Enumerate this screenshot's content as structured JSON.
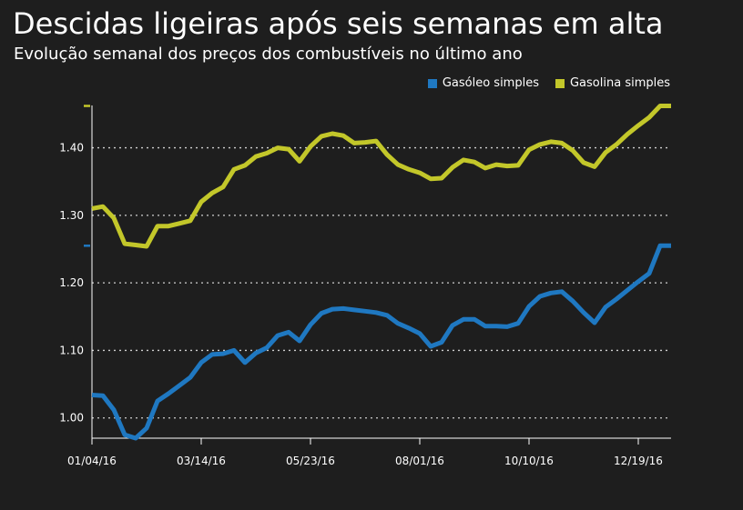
{
  "title": "Descidas ligeiras após seis semanas em alta",
  "subtitle": "Evolução semanal dos preços dos combustíveis no último ano",
  "colors": {
    "background": "#1e1e1e",
    "diesel": "#1f78c1",
    "gasoline": "#c3c72a",
    "grid": "#cfcfcf"
  },
  "chart_data": {
    "type": "line",
    "legend_position": "top-right",
    "grid": true,
    "y_ticks": [
      "1.00",
      "1.10",
      "1.20",
      "1.30",
      "1.40"
    ],
    "y_tick_values": [
      1.0,
      1.1,
      1.2,
      1.3,
      1.4
    ],
    "ylim": [
      0.97,
      1.46
    ],
    "x_ticks": [
      "01/04/16",
      "03/14/16",
      "05/23/16",
      "08/01/16",
      "10/10/16",
      "12/19/16"
    ],
    "x_tick_index": [
      0,
      10,
      20,
      30,
      40,
      50
    ],
    "xlim": [
      0,
      53
    ],
    "series": [
      {
        "name": "Gasóleo simples",
        "color": "#1f78c1",
        "values": [
          1.034,
          1.033,
          1.012,
          0.975,
          0.97,
          0.985,
          1.025,
          1.036,
          1.048,
          1.06,
          1.082,
          1.094,
          1.095,
          1.1,
          1.082,
          1.096,
          1.104,
          1.122,
          1.127,
          1.114,
          1.138,
          1.155,
          1.161,
          1.162,
          1.16,
          1.158,
          1.156,
          1.152,
          1.14,
          1.133,
          1.125,
          1.106,
          1.112,
          1.137,
          1.146,
          1.146,
          1.136,
          1.136,
          1.135,
          1.14,
          1.165,
          1.18,
          1.185,
          1.187,
          1.173,
          1.156,
          1.141,
          1.164,
          1.176,
          1.189,
          1.202,
          1.214,
          1.255,
          1.255
        ]
      },
      {
        "name": "Gasolina simples",
        "color": "#c3c72a",
        "values": [
          1.31,
          1.313,
          1.296,
          1.258,
          1.256,
          1.254,
          1.284,
          1.284,
          1.288,
          1.292,
          1.32,
          1.333,
          1.342,
          1.368,
          1.374,
          1.387,
          1.392,
          1.4,
          1.398,
          1.38,
          1.402,
          1.417,
          1.421,
          1.418,
          1.407,
          1.408,
          1.41,
          1.39,
          1.375,
          1.368,
          1.363,
          1.354,
          1.355,
          1.371,
          1.382,
          1.379,
          1.37,
          1.375,
          1.373,
          1.374,
          1.397,
          1.405,
          1.409,
          1.407,
          1.396,
          1.378,
          1.372,
          1.393,
          1.405,
          1.42,
          1.433,
          1.445,
          1.462,
          1.462
        ]
      }
    ]
  }
}
